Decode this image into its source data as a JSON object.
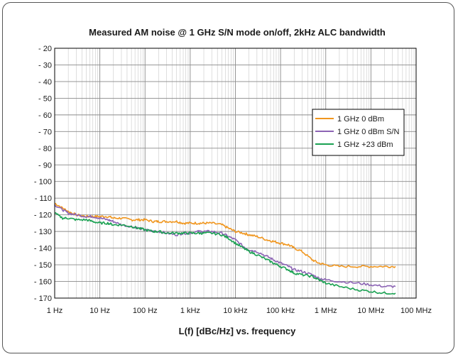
{
  "chart_data": {
    "type": "line",
    "title": "Measured AM noise @ 1 GHz S/N mode on/off, 2kHz ALC bandwidth",
    "xlabel": "L(f) [dBc/Hz] vs. frequency",
    "ylabel": "",
    "x_scale": "log",
    "xlim": [
      1,
      100000000
    ],
    "ylim": [
      -170,
      -20
    ],
    "grid": true,
    "legend_position": "upper-right",
    "x_ticks": [
      {
        "value": 1,
        "label": "1 Hz"
      },
      {
        "value": 10,
        "label": "10 Hz"
      },
      {
        "value": 100,
        "label": "100 Hz"
      },
      {
        "value": 1000,
        "label": "1 kHz"
      },
      {
        "value": 10000,
        "label": "10 kHz"
      },
      {
        "value": 100000,
        "label": "100 kHz"
      },
      {
        "value": 1000000,
        "label": "1 MHz"
      },
      {
        "value": 10000000,
        "label": "10 MHz"
      },
      {
        "value": 100000000,
        "label": "100 MHz"
      }
    ],
    "y_ticks": [
      {
        "value": -20,
        "label": "- 20"
      },
      {
        "value": -30,
        "label": "- 30"
      },
      {
        "value": -40,
        "label": "- 40"
      },
      {
        "value": -50,
        "label": "- 50"
      },
      {
        "value": -60,
        "label": "- 60"
      },
      {
        "value": -70,
        "label": "- 70"
      },
      {
        "value": -80,
        "label": "- 80"
      },
      {
        "value": -90,
        "label": "- 90"
      },
      {
        "value": -100,
        "label": "- 100"
      },
      {
        "value": -110,
        "label": "- 110"
      },
      {
        "value": -120,
        "label": "- 120"
      },
      {
        "value": -130,
        "label": "- 130"
      },
      {
        "value": -140,
        "label": "- 140"
      },
      {
        "value": -150,
        "label": "- 150"
      },
      {
        "value": -160,
        "label": "- 160"
      },
      {
        "value": -170,
        "label": "- 170"
      }
    ],
    "series": [
      {
        "name": "1 GHz 0 dBm",
        "color": "#f0961e",
        "points": [
          [
            1,
            -113
          ],
          [
            1.5,
            -116
          ],
          [
            2,
            -118
          ],
          [
            3,
            -120
          ],
          [
            5,
            -121
          ],
          [
            7,
            -121
          ],
          [
            10,
            -121
          ],
          [
            15,
            -121
          ],
          [
            20,
            -122
          ],
          [
            30,
            -122
          ],
          [
            50,
            -123
          ],
          [
            70,
            -123
          ],
          [
            100,
            -123
          ],
          [
            150,
            -124
          ],
          [
            200,
            -124
          ],
          [
            300,
            -124
          ],
          [
            500,
            -124
          ],
          [
            700,
            -125
          ],
          [
            1000,
            -125
          ],
          [
            1500,
            -125
          ],
          [
            2000,
            -125
          ],
          [
            3000,
            -125
          ],
          [
            5000,
            -126
          ],
          [
            7000,
            -128
          ],
          [
            10000,
            -130
          ],
          [
            15000,
            -131
          ],
          [
            20000,
            -132
          ],
          [
            30000,
            -133
          ],
          [
            50000,
            -135
          ],
          [
            70000,
            -136
          ],
          [
            100000,
            -137
          ],
          [
            150000,
            -138
          ],
          [
            200000,
            -140
          ],
          [
            300000,
            -142
          ],
          [
            500000,
            -147
          ],
          [
            700000,
            -149
          ],
          [
            1000000,
            -150
          ],
          [
            2000000,
            -151
          ],
          [
            5000000,
            -151
          ],
          [
            10000000,
            -151
          ],
          [
            20000000,
            -151
          ],
          [
            35000000,
            -151
          ]
        ]
      },
      {
        "name": "1 GHz 0 dBm S/N",
        "color": "#8c64b4",
        "points": [
          [
            1,
            -114
          ],
          [
            1.5,
            -117
          ],
          [
            2,
            -119
          ],
          [
            3,
            -120
          ],
          [
            5,
            -121
          ],
          [
            7,
            -121
          ],
          [
            10,
            -122
          ],
          [
            15,
            -123
          ],
          [
            20,
            -124
          ],
          [
            30,
            -126
          ],
          [
            50,
            -127
          ],
          [
            70,
            -128
          ],
          [
            100,
            -129
          ],
          [
            150,
            -130
          ],
          [
            200,
            -130
          ],
          [
            300,
            -131
          ],
          [
            500,
            -132
          ],
          [
            700,
            -131
          ],
          [
            1000,
            -131
          ],
          [
            1500,
            -130
          ],
          [
            2000,
            -130
          ],
          [
            3000,
            -130
          ],
          [
            5000,
            -131
          ],
          [
            7000,
            -133
          ],
          [
            10000,
            -135
          ],
          [
            15000,
            -139
          ],
          [
            20000,
            -141
          ],
          [
            30000,
            -142
          ],
          [
            50000,
            -145
          ],
          [
            70000,
            -147
          ],
          [
            100000,
            -149
          ],
          [
            150000,
            -151
          ],
          [
            200000,
            -153
          ],
          [
            300000,
            -154
          ],
          [
            500000,
            -156
          ],
          [
            700000,
            -158
          ],
          [
            1000000,
            -159
          ],
          [
            2000000,
            -160
          ],
          [
            5000000,
            -161
          ],
          [
            10000000,
            -162
          ],
          [
            20000000,
            -163
          ],
          [
            35000000,
            -163
          ]
        ]
      },
      {
        "name": "1 GHz +23 dBm",
        "color": "#1aa152",
        "points": [
          [
            1,
            -119
          ],
          [
            1.5,
            -122
          ],
          [
            2,
            -122
          ],
          [
            3,
            -123
          ],
          [
            5,
            -123
          ],
          [
            7,
            -124
          ],
          [
            10,
            -125
          ],
          [
            15,
            -125
          ],
          [
            20,
            -126
          ],
          [
            30,
            -126
          ],
          [
            50,
            -127
          ],
          [
            70,
            -128
          ],
          [
            100,
            -129
          ],
          [
            150,
            -130
          ],
          [
            200,
            -130
          ],
          [
            300,
            -131
          ],
          [
            500,
            -131
          ],
          [
            700,
            -131
          ],
          [
            1000,
            -131
          ],
          [
            1500,
            -131
          ],
          [
            2000,
            -131
          ],
          [
            3000,
            -131
          ],
          [
            5000,
            -132
          ],
          [
            7000,
            -134
          ],
          [
            10000,
            -137
          ],
          [
            15000,
            -140
          ],
          [
            20000,
            -142
          ],
          [
            30000,
            -144
          ],
          [
            50000,
            -147
          ],
          [
            70000,
            -149
          ],
          [
            100000,
            -151
          ],
          [
            150000,
            -153
          ],
          [
            200000,
            -155
          ],
          [
            300000,
            -156
          ],
          [
            500000,
            -157
          ],
          [
            700000,
            -159
          ],
          [
            1000000,
            -161
          ],
          [
            2000000,
            -163
          ],
          [
            5000000,
            -165
          ],
          [
            10000000,
            -166
          ],
          [
            20000000,
            -167
          ],
          [
            35000000,
            -167
          ]
        ]
      }
    ]
  }
}
